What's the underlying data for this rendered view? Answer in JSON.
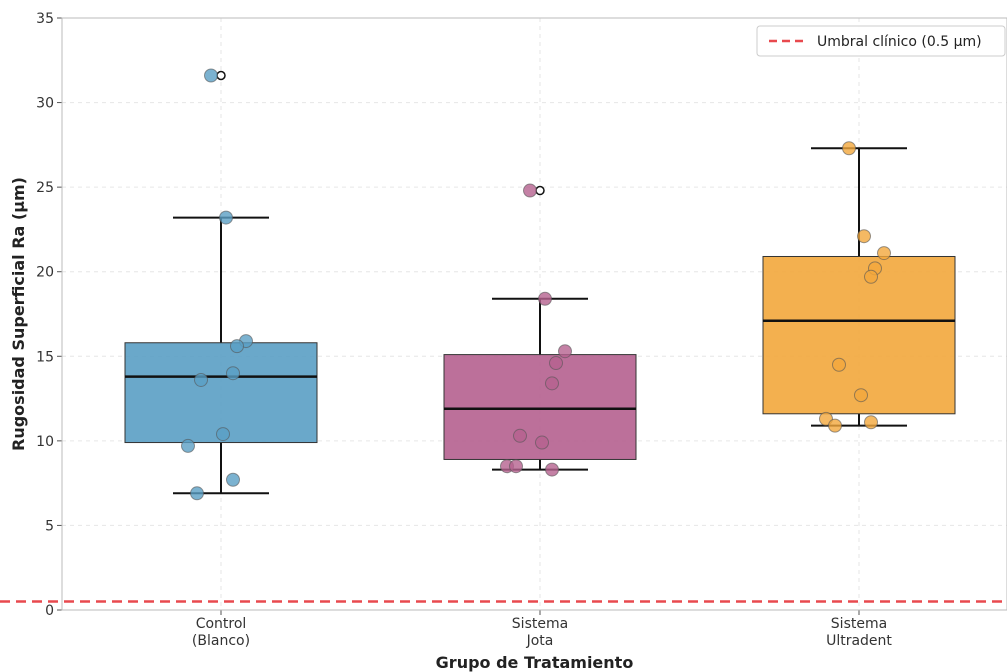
{
  "chart_data": {
    "type": "box",
    "title": "",
    "xlabel": "Grupo de Tratamiento",
    "ylabel": "Rugosidad Superficial Ra (µm)",
    "ylim": [
      0,
      35
    ],
    "yticks": [
      0,
      5,
      10,
      15,
      20,
      25,
      30,
      35
    ],
    "grid": true,
    "legend_position": "top-right",
    "reference_line": {
      "label": "Umbral clínico (0.5 µm)",
      "value": 0.5,
      "color": "#e8494e",
      "style": "dashed"
    },
    "groups": [
      {
        "label_lines": [
          "Control",
          "(Blanco)"
        ],
        "color": "#5a9fc4",
        "q1": 9.9,
        "median": 13.8,
        "q3": 15.8,
        "whisker_low": 6.9,
        "whisker_high": 23.2,
        "outliers": [
          31.6
        ],
        "points": [
          31.6,
          23.2,
          15.9,
          15.6,
          14.0,
          13.6,
          10.4,
          9.7,
          7.7,
          6.9
        ]
      },
      {
        "label_lines": [
          "Sistema",
          "Jota"
        ],
        "color": "#b5618f",
        "q1": 8.9,
        "median": 11.9,
        "q3": 15.1,
        "whisker_low": 8.3,
        "whisker_high": 18.4,
        "outliers": [
          24.8
        ],
        "points": [
          24.8,
          18.4,
          15.3,
          14.6,
          13.4,
          10.3,
          9.9,
          8.5,
          8.3,
          8.5
        ]
      },
      {
        "label_lines": [
          "Sistema",
          "Ultradent"
        ],
        "color": "#f2a73c",
        "q1": 11.6,
        "median": 17.1,
        "q3": 20.9,
        "whisker_low": 10.9,
        "whisker_high": 27.3,
        "outliers": [],
        "points": [
          27.3,
          22.1,
          21.1,
          20.2,
          19.7,
          14.5,
          12.7,
          11.3,
          11.1,
          10.9
        ]
      }
    ]
  }
}
